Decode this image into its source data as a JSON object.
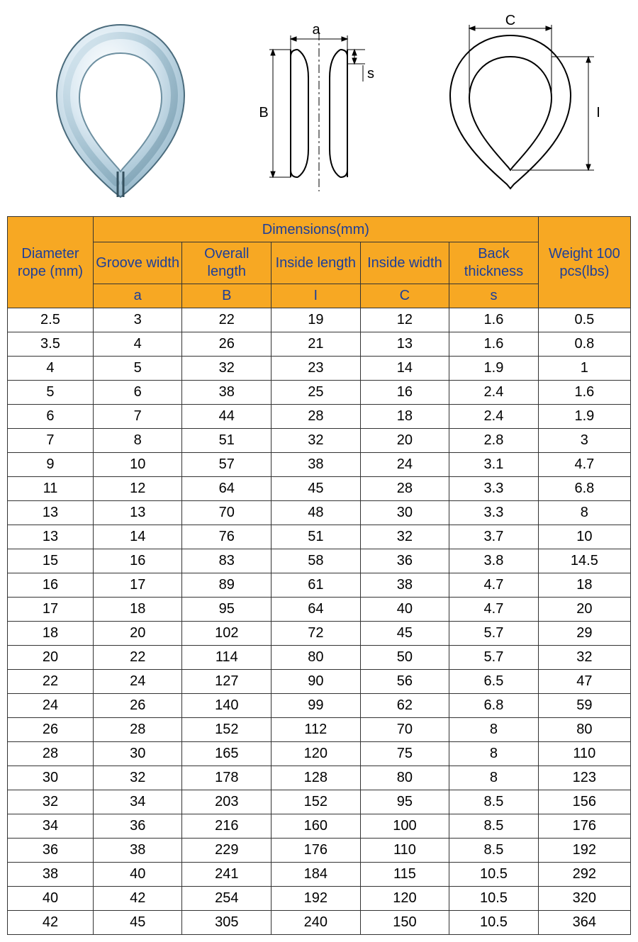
{
  "style": {
    "header_bg": "#f7a823",
    "header_text": "#1d3f9a",
    "border_color": "#333333",
    "body_bg": "#ffffff",
    "body_text": "#000000",
    "header_fontsize": 20,
    "body_fontsize": 20
  },
  "diagrams": {
    "labels": {
      "a": "a",
      "B": "B",
      "s": "s",
      "C": "C",
      "I": "I"
    }
  },
  "table": {
    "type": "table",
    "header": {
      "diameter": "Diameter rope (mm)",
      "dimensions_group": "Dimensions(mm)",
      "weight": "Weight 100 pcs(lbs)",
      "cols": [
        {
          "name": "Groove width",
          "sym": "a"
        },
        {
          "name": "Overall length",
          "sym": "B"
        },
        {
          "name": "Inside length",
          "sym": "I"
        },
        {
          "name": "Inside width",
          "sym": "C"
        },
        {
          "name": "Back thickness",
          "sym": "s"
        }
      ]
    },
    "rows": [
      [
        "2.5",
        "3",
        "22",
        "19",
        "12",
        "1.6",
        "0.5"
      ],
      [
        "3.5",
        "4",
        "26",
        "21",
        "13",
        "1.6",
        "0.8"
      ],
      [
        "4",
        "5",
        "32",
        "23",
        "14",
        "1.9",
        "1"
      ],
      [
        "5",
        "6",
        "38",
        "25",
        "16",
        "2.4",
        "1.6"
      ],
      [
        "6",
        "7",
        "44",
        "28",
        "18",
        "2.4",
        "1.9"
      ],
      [
        "7",
        "8",
        "51",
        "32",
        "20",
        "2.8",
        "3"
      ],
      [
        "9",
        "10",
        "57",
        "38",
        "24",
        "3.1",
        "4.7"
      ],
      [
        "11",
        "12",
        "64",
        "45",
        "28",
        "3.3",
        "6.8"
      ],
      [
        "13",
        "13",
        "70",
        "48",
        "30",
        "3.3",
        "8"
      ],
      [
        "13",
        "14",
        "76",
        "51",
        "32",
        "3.7",
        "10"
      ],
      [
        "15",
        "16",
        "83",
        "58",
        "36",
        "3.8",
        "14.5"
      ],
      [
        "16",
        "17",
        "89",
        "61",
        "38",
        "4.7",
        "18"
      ],
      [
        "17",
        "18",
        "95",
        "64",
        "40",
        "4.7",
        "20"
      ],
      [
        "18",
        "20",
        "102",
        "72",
        "45",
        "5.7",
        "29"
      ],
      [
        "20",
        "22",
        "114",
        "80",
        "50",
        "5.7",
        "32"
      ],
      [
        "22",
        "24",
        "127",
        "90",
        "56",
        "6.5",
        "47"
      ],
      [
        "24",
        "26",
        "140",
        "99",
        "62",
        "6.8",
        "59"
      ],
      [
        "26",
        "28",
        "152",
        "112",
        "70",
        "8",
        "80"
      ],
      [
        "28",
        "30",
        "165",
        "120",
        "75",
        "8",
        "110"
      ],
      [
        "30",
        "32",
        "178",
        "128",
        "80",
        "8",
        "123"
      ],
      [
        "32",
        "34",
        "203",
        "152",
        "95",
        "8.5",
        "156"
      ],
      [
        "34",
        "36",
        "216",
        "160",
        "100",
        "8.5",
        "176"
      ],
      [
        "36",
        "38",
        "229",
        "176",
        "110",
        "8.5",
        "192"
      ],
      [
        "38",
        "40",
        "241",
        "184",
        "115",
        "10.5",
        "292"
      ],
      [
        "40",
        "42",
        "254",
        "192",
        "120",
        "10.5",
        "320"
      ],
      [
        "42",
        "45",
        "305",
        "240",
        "150",
        "10.5",
        "364"
      ]
    ]
  }
}
